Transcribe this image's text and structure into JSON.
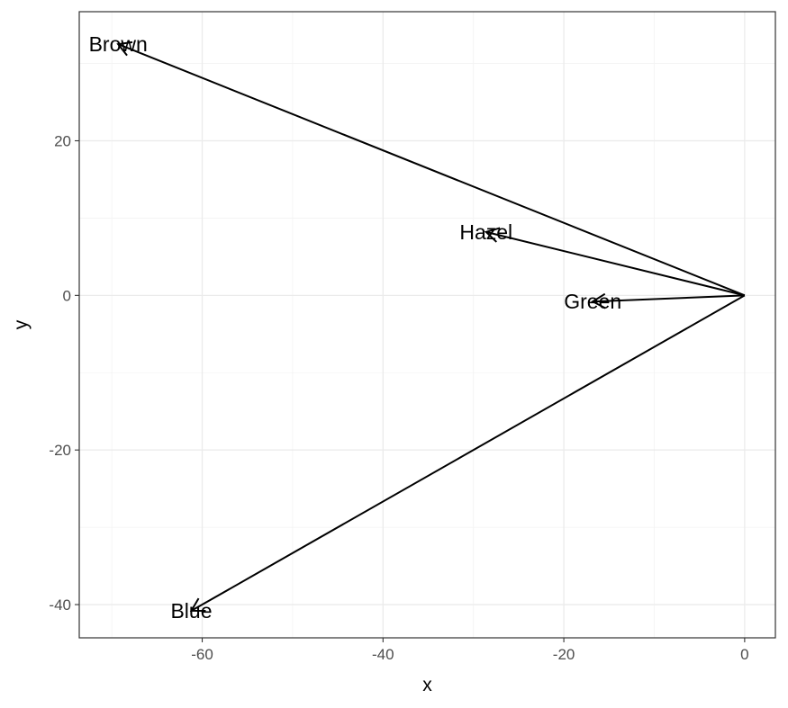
{
  "chart_data": {
    "type": "scatter",
    "subtype": "vector-biplot",
    "title": "",
    "xlabel": "x",
    "ylabel": "y",
    "xlim": [
      -73.6,
      3.4
    ],
    "ylim": [
      -44.3,
      36.7
    ],
    "xticks": [
      -60,
      -40,
      -20,
      0
    ],
    "yticks": [
      -40,
      -20,
      0,
      20
    ],
    "xtick_labels": [
      "-60",
      "-40",
      "-20",
      "0"
    ],
    "ytick_labels": [
      "-40",
      "-20",
      "0",
      "20"
    ],
    "grid": true,
    "origin": [
      0,
      0
    ],
    "vectors": [
      {
        "label": "Brown",
        "x": -69.3,
        "y": 32.5
      },
      {
        "label": "Hazel",
        "x": -28.6,
        "y": 8.2
      },
      {
        "label": "Green",
        "x": -16.8,
        "y": -0.8
      },
      {
        "label": "Blue",
        "x": -61.2,
        "y": -40.8
      }
    ],
    "colors": {
      "line": "#000000",
      "panel_border": "#333333",
      "grid": "#ebebeb",
      "tick_label": "#4d4d4d"
    }
  }
}
